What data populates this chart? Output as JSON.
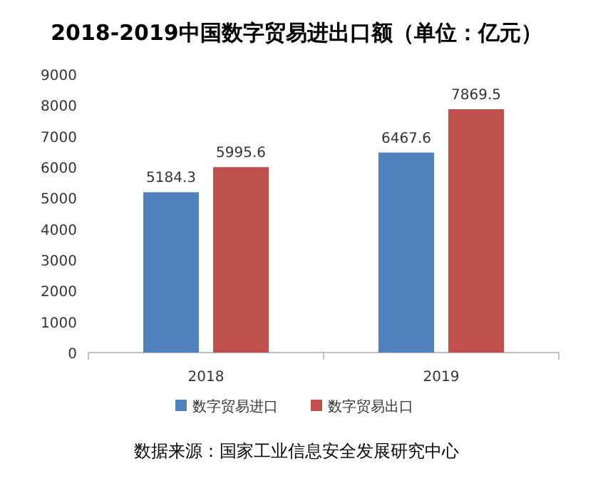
{
  "chart_data": {
    "type": "bar",
    "title": "2018-2019中国数字贸易进出口额（单位：亿元）",
    "categories": [
      "2018",
      "2019"
    ],
    "series": [
      {
        "name": "数字贸易进口",
        "color": "#4f81bd",
        "values": [
          5184.3,
          6467.6
        ]
      },
      {
        "name": "数字贸易出口",
        "color": "#c0504d",
        "values": [
          5995.6,
          7869.5
        ]
      }
    ],
    "ylim": [
      0,
      9000
    ],
    "yticks": [
      0,
      1000,
      2000,
      3000,
      4000,
      5000,
      6000,
      7000,
      8000,
      9000
    ],
    "data_labels": true,
    "legend": "bottom",
    "annotations": [
      "数据来源：国家工业信息安全发展研究中心"
    ]
  }
}
